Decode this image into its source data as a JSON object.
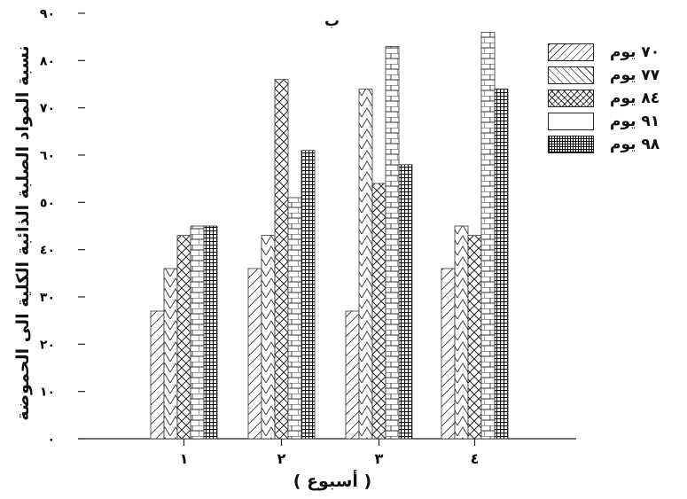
{
  "chart_data": {
    "type": "bar",
    "title": "ب",
    "ylabel": "نسبة المواد الصلبة الذائبة الكلية الى الحموضة",
    "xlabel": "( أسبوع )",
    "categories": [
      "١",
      "٢",
      "٣",
      "٤"
    ],
    "yticks": [
      "٠",
      "١٠",
      "٢٠",
      "٣٠",
      "٤٠",
      "٥٠",
      "٦٠",
      "٧٠",
      "٨٠",
      "٩٠"
    ],
    "ylim": [
      0,
      90
    ],
    "grid": false,
    "legend_position": "right",
    "series": [
      {
        "name": "٧٠ يوم",
        "pattern": "diagonal",
        "values": [
          27,
          36,
          27,
          36
        ]
      },
      {
        "name": "٧٧ يوم",
        "pattern": "chevron",
        "values": [
          36,
          43,
          74,
          45
        ]
      },
      {
        "name": "٨٤ يوم",
        "pattern": "cross",
        "values": [
          43,
          76,
          54,
          43
        ]
      },
      {
        "name": "٩١ يوم",
        "pattern": "brick",
        "values": [
          45,
          51,
          83,
          86
        ]
      },
      {
        "name": "٩٨ يوم",
        "pattern": "grid",
        "values": [
          45,
          61,
          58,
          74
        ]
      }
    ]
  }
}
